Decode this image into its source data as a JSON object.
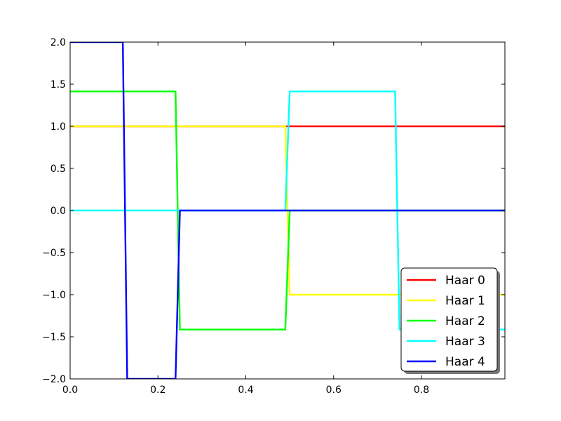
{
  "chart_data": {
    "type": "line",
    "title": "",
    "xlabel": "",
    "ylabel": "",
    "xlim": [
      0.0,
      0.99
    ],
    "ylim": [
      -2.0,
      2.0
    ],
    "grid": false,
    "legend_position": "lower-right",
    "x_ticks": [
      0.0,
      0.2,
      0.4,
      0.6,
      0.8
    ],
    "x_tick_labels": [
      "0.0",
      "0.2",
      "0.4",
      "0.6",
      "0.8"
    ],
    "y_ticks": [
      2.0,
      1.5,
      1.0,
      0.5,
      0.0,
      -0.5,
      -1.0,
      -1.5,
      -2.0
    ],
    "y_tick_labels": [
      "2.0",
      "1.5",
      "1.0",
      "0.5",
      "0.0",
      "−0.5",
      "−1.0",
      "−1.5",
      "−2.0"
    ],
    "series": [
      {
        "name": "Haar 0",
        "color": "#ff0000",
        "x": [
          0.0,
          0.99
        ],
        "y": [
          1.0,
          1.0
        ]
      },
      {
        "name": "Haar 1",
        "color": "#ffff00",
        "x": [
          0.0,
          0.49,
          0.5,
          0.99
        ],
        "y": [
          1.0,
          1.0,
          -1.0,
          -1.0
        ]
      },
      {
        "name": "Haar 2",
        "color": "#00ff00",
        "x": [
          0.0,
          0.24,
          0.25,
          0.49,
          0.5,
          0.99
        ],
        "y": [
          1.414,
          1.414,
          -1.414,
          -1.414,
          0.0,
          0.0
        ]
      },
      {
        "name": "Haar 3",
        "color": "#00ffff",
        "x": [
          0.0,
          0.49,
          0.5,
          0.74,
          0.75,
          0.99
        ],
        "y": [
          0.0,
          0.0,
          1.414,
          1.414,
          -1.414,
          -1.414
        ]
      },
      {
        "name": "Haar 4",
        "color": "#0000ff",
        "x": [
          0.0,
          0.12,
          0.13,
          0.24,
          0.25,
          0.99
        ],
        "y": [
          2.0,
          2.0,
          -2.0,
          -2.0,
          0.0,
          0.0
        ]
      }
    ]
  }
}
